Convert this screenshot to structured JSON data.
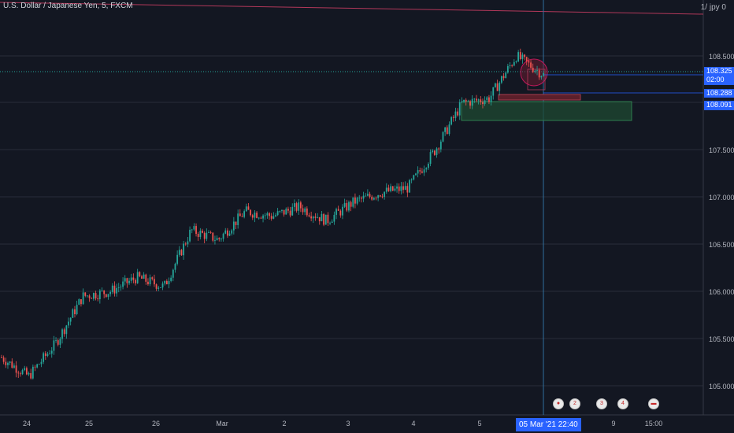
{
  "header": {
    "title": "U.S. Dollar / Japanese Yen, 5, FXCM",
    "currency": "1/ jpy 0"
  },
  "price_axis": {
    "labels": [
      "108.500",
      "108.000",
      "107.500",
      "107.000",
      "106.500",
      "106.000",
      "105.500",
      "105.000"
    ],
    "tag_last": "108.325",
    "tag_countdown": "02:00",
    "tag_mid": "108.288",
    "tag_low": "108.091"
  },
  "time_axis": {
    "labels": [
      "24",
      "25",
      "26",
      "Mar",
      "2",
      "3",
      "4",
      "5",
      "9",
      "15:00"
    ],
    "crosshair_label": "05 Mar '21   22:40"
  },
  "events": [
    "icon",
    "2",
    "3",
    "4",
    "icon"
  ],
  "colors": {
    "up": "#26a69a",
    "down": "#ef5350",
    "bg": "#131722",
    "accent": "#2962ff",
    "grid": "#2a2e39"
  },
  "chart_data": {
    "type": "candlestick",
    "title": "U.S. Dollar / Japanese Yen, 5, FXCM",
    "ylim": [
      104.8,
      108.95
    ],
    "ytick_labels": [
      "108.500",
      "108.000",
      "107.500",
      "107.000",
      "106.500",
      "106.000",
      "105.500",
      "105.000"
    ],
    "xtick_labels": [
      "24",
      "25",
      "26",
      "Mar",
      "2",
      "3",
      "4",
      "5",
      "9",
      "15:00"
    ],
    "trend_path": [
      [
        "24",
        105.3
      ],
      [
        "24",
        105.1
      ],
      [
        "24",
        105.45
      ],
      [
        "25",
        105.95
      ],
      [
        "25",
        106.0
      ],
      [
        "26",
        106.15
      ],
      [
        "26",
        106.05
      ],
      [
        "Mar",
        106.65
      ],
      [
        "Mar",
        106.55
      ],
      [
        "2",
        106.85
      ],
      [
        "2",
        106.8
      ],
      [
        "3",
        106.9
      ],
      [
        "3",
        106.75
      ],
      [
        "3",
        106.95
      ],
      [
        "4",
        107.05
      ],
      [
        "4",
        107.1
      ],
      [
        "4",
        107.5
      ],
      [
        "5",
        108.0
      ],
      [
        "5",
        108.05
      ],
      [
        "5",
        108.5
      ],
      [
        "5",
        108.3
      ]
    ],
    "zones": [
      {
        "type": "demand",
        "low": 107.82,
        "high": 108.02
      },
      {
        "type": "resistance-marker",
        "low": 108.03,
        "high": 108.07
      }
    ],
    "price_levels": [
      108.325,
      108.288,
      108.091
    ]
  }
}
